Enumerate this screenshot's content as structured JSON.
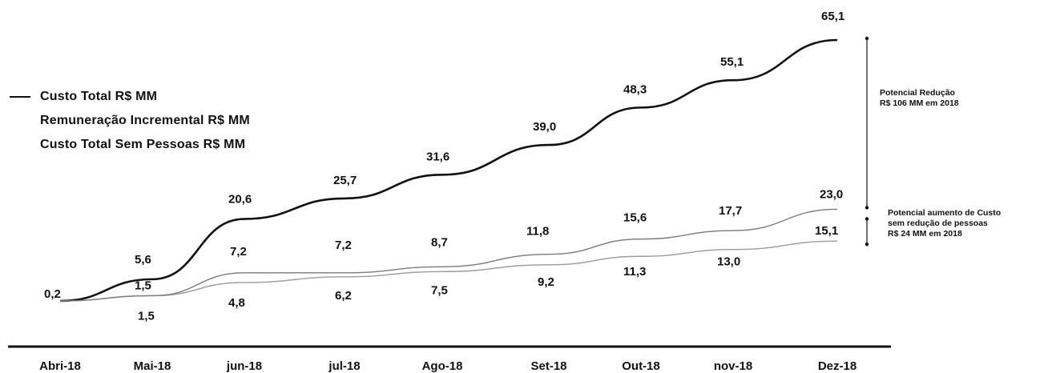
{
  "chart_data": {
    "type": "line",
    "categories": [
      "Abri-18",
      "Mai-18",
      "jun-18",
      "jul-18",
      "Ago-18",
      "Set-18",
      "Out-18",
      "nov-18",
      "Dez-18"
    ],
    "series": [
      {
        "name": "Custo Total R$ MM",
        "values": [
          0.2,
          5.6,
          20.6,
          25.7,
          31.6,
          39.0,
          48.3,
          55.1,
          65.1
        ],
        "labels": [
          "0,2",
          "5,6",
          "20,6",
          "25,7",
          "31,6",
          "39,0",
          "48,3",
          "55,1",
          "65,1"
        ],
        "color": "#111111"
      },
      {
        "name": "Remuneração Incremental R$ MM",
        "values": [
          null,
          1.5,
          4.8,
          6.2,
          7.5,
          9.2,
          11.3,
          13.0,
          15.1
        ],
        "labels": [
          "",
          "1,5",
          "4,8",
          "6,2",
          "7,5",
          "9,2",
          "11,3",
          "13,0",
          "15,1"
        ],
        "color": "#9a9a9a"
      },
      {
        "name": "Custo Total Sem Pessoas R$ MM",
        "values": [
          null,
          1.5,
          7.2,
          7.2,
          8.7,
          11.8,
          15.6,
          17.7,
          23.0
        ],
        "labels": [
          "",
          "1,5",
          "7,2",
          "7,2",
          "8,7",
          "11,8",
          "15,6",
          "17,7",
          "23,0"
        ],
        "color": "#7a7a7a"
      }
    ],
    "legend": [
      "Custo Total R$ MM",
      "Remuneração Incremental R$ MM",
      "Custo Total Sem Pessoas R$ MM"
    ],
    "legend_position": "left",
    "annotations": [
      [
        "Potencial Redução",
        "R$ 106 MM em 2018"
      ],
      [
        "Potencial aumento de Custo",
        "sem redução de pessoas",
        "R$ 24 MM em 2018"
      ]
    ],
    "ylim": [
      0,
      70
    ],
    "grid": false
  },
  "colors": {
    "ink": "#111111"
  }
}
